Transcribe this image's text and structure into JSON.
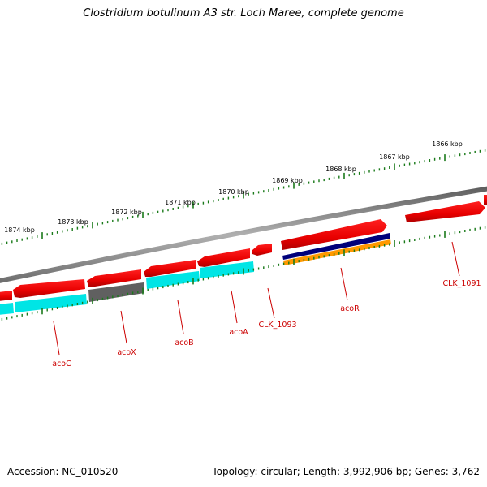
{
  "title": "Clostridium botulinum A3 str. Loch Maree, complete genome",
  "footer": {
    "accession": "Accession: NC_010520",
    "summary": "Topology: circular; Length: 3,992,906 bp; Genes: 3,762"
  },
  "ruler_labels": [
    "1866 kbp",
    "1867 kbp",
    "1868 kbp",
    "1869 kbp",
    "1870 kbp",
    "1871 kbp",
    "1872 kbp",
    "1873 kbp",
    "1874 kbp"
  ],
  "gene_labels": [
    "CLK_1091",
    "acoR",
    "CLK_1093",
    "acoA",
    "acoB",
    "acoX",
    "acoC"
  ],
  "colors": {
    "backbone": "#808080",
    "forward_cds": "#ff0000",
    "reverse_cds": "#ff0000",
    "cog_cyan": "#00e5e5",
    "cog_gray": "#606060",
    "cog_navy": "#00007a",
    "cog_orange": "#ff9900",
    "ticks": "#1a7a1a",
    "gene_label": "#cc0000"
  }
}
